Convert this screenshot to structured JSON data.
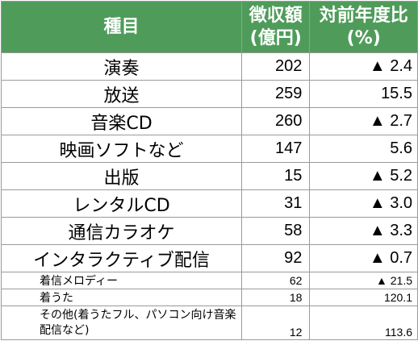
{
  "header": {
    "category": "種目",
    "amount_line1": "徴収額",
    "amount_line2": "(億円)",
    "change_line1": "対前年度比",
    "change_line2": "(%)"
  },
  "rows": [
    {
      "category": "演奏",
      "amount": "202",
      "change": "▲ 2.4"
    },
    {
      "category": "放送",
      "amount": "259",
      "change": "15.5"
    },
    {
      "category": "音楽CD",
      "amount": "260",
      "change": "▲ 2.7"
    },
    {
      "category": "映画ソフトなど",
      "amount": "147",
      "change": "5.6"
    },
    {
      "category": "出版",
      "amount": "15",
      "change": "▲ 5.2"
    },
    {
      "category": "レンタルCD",
      "amount": "31",
      "change": "▲ 3.0"
    },
    {
      "category": "通信カラオケ",
      "amount": "58",
      "change": "▲ 3.3"
    },
    {
      "category": "インタラクティブ配信",
      "amount": "92",
      "change": "▲ 0.7"
    }
  ],
  "subrows": [
    {
      "category": "着信メロディー",
      "amount": "62",
      "change": "▲ 21.5"
    },
    {
      "category": "着うた",
      "amount": "18",
      "change": "120.1"
    },
    {
      "category": "その他(着うたフル、パソコン向け音楽配信など)",
      "amount": "12",
      "change": "113.6"
    }
  ],
  "colors": {
    "header_bg": "#4f9c5a",
    "header_text": "#ffffff",
    "border": "#9a9a9a"
  }
}
